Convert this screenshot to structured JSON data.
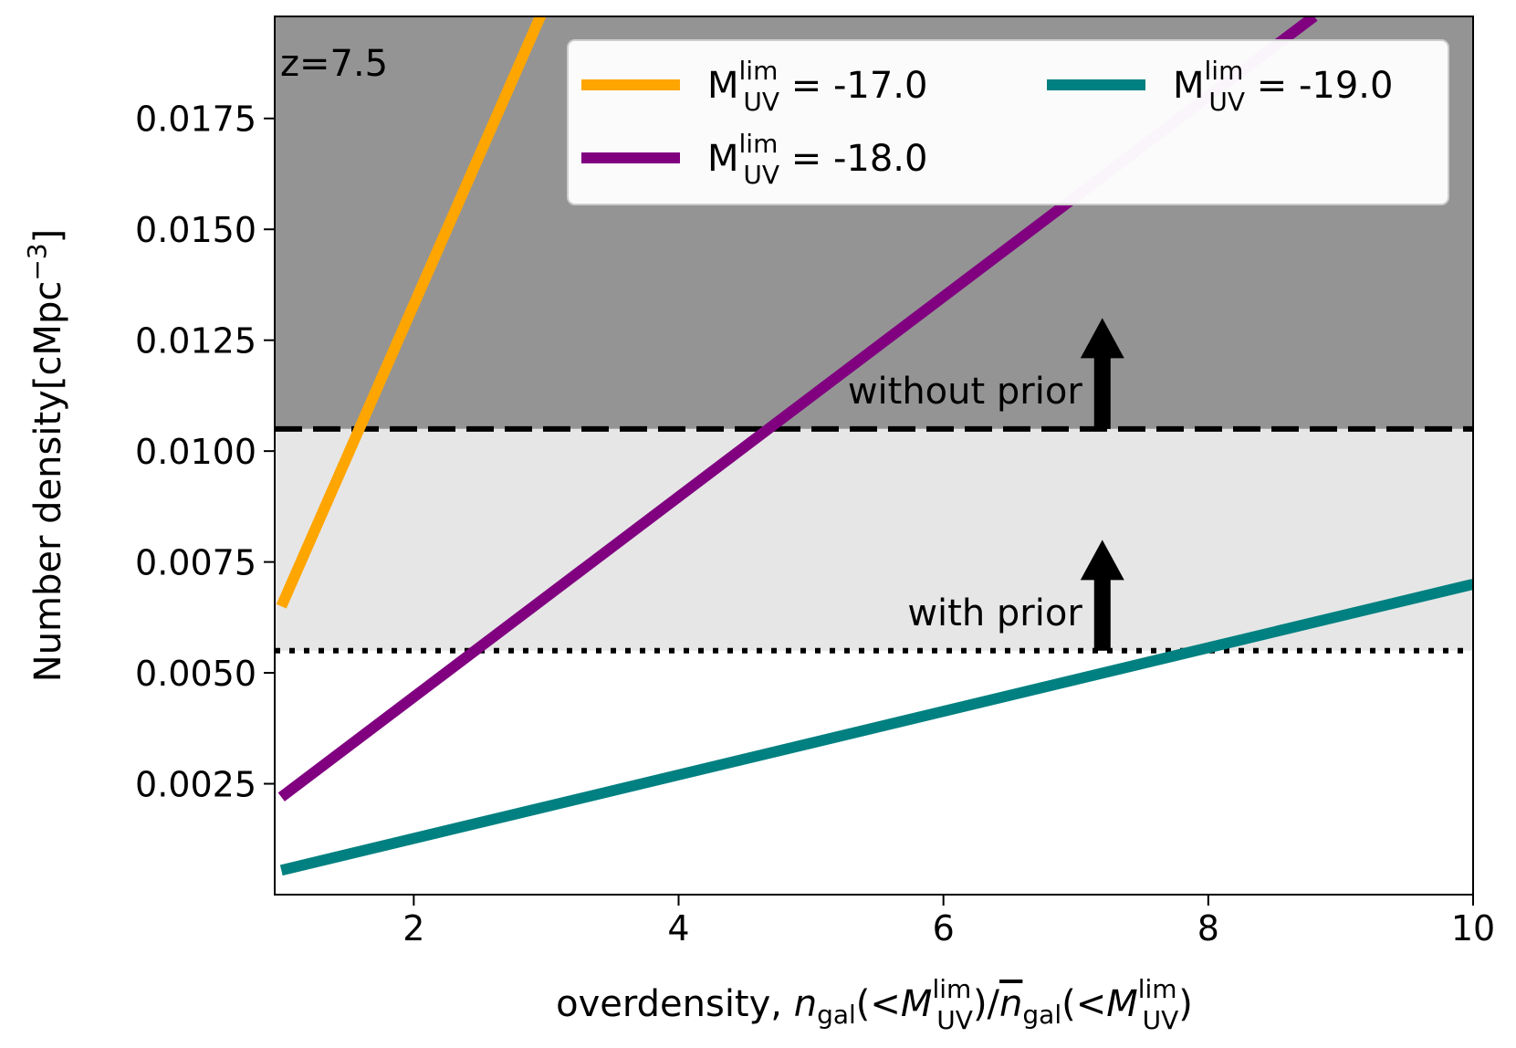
{
  "chart_data": {
    "type": "line",
    "xlabel": {
      "prefix": "overdensity, ",
      "n": "n",
      "n_sub": "gal",
      "lt": "(<",
      "M": "M",
      "M_sup": "lim",
      "M_sub": "UV",
      "close_slash": ")/",
      "close": ")"
    },
    "ylabel": "Number density[cMpc",
    "ylabel_exp": "−3",
    "ylabel_end": "]",
    "xlim": [
      0.95,
      10.0
    ],
    "ylim": [
      0.0,
      0.0198
    ],
    "x_ticks": [
      2,
      4,
      6,
      8,
      10
    ],
    "x_tick_labels": [
      "2",
      "4",
      "6",
      "8",
      "10"
    ],
    "y_ticks": [
      0.0025,
      0.005,
      0.0075,
      0.01,
      0.0125,
      0.015,
      0.0175
    ],
    "y_tick_labels": [
      "0.0025",
      "0.0050",
      "0.0075",
      "0.0100",
      "0.0125",
      "0.0150",
      "0.0175"
    ],
    "redshift_label": "z=7.5",
    "series": [
      {
        "name": "-17.0",
        "color": "#ffa500",
        "x": [
          1.0,
          3.0
        ],
        "y": [
          0.0065,
          0.0201
        ]
      },
      {
        "name": "-18.0",
        "color": "#800080",
        "x": [
          1.0,
          8.8
        ],
        "y": [
          0.0022,
          0.0198
        ]
      },
      {
        "name": "-19.0",
        "color": "#008080",
        "x": [
          1.0,
          10.0
        ],
        "y": [
          0.00055,
          0.007
        ]
      }
    ],
    "legend": {
      "placement": "upper right",
      "ncol": 2,
      "prefix": "M",
      "sup": "lim",
      "sub": "UV",
      "eq": " = "
    },
    "thresholds": [
      {
        "label": "without prior",
        "y": 0.0105,
        "style": "dashed",
        "shade_color": "#949494"
      },
      {
        "label": "with prior",
        "y": 0.0055,
        "style": "dotted",
        "shade_color": "#e6e6e6"
      }
    ],
    "arrow_x": 7.2,
    "arrow_length": 0.0025
  }
}
